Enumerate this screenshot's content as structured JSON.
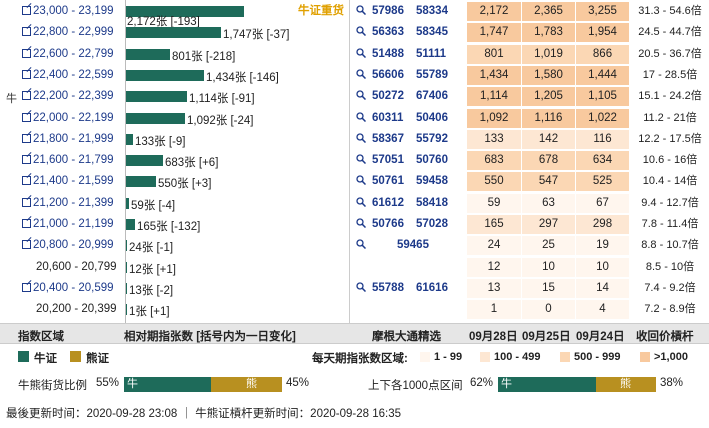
{
  "colors": {
    "bull": "#1e6b5a",
    "bear": "#b89020",
    "heat1": "#fde7d3",
    "heat2": "#fbd7b4",
    "heat3": "#f8c99e",
    "heat0": "#fff6ee"
  },
  "heavy_label": "牛证重货",
  "bull_mark": "牛",
  "rows": [
    {
      "range": "23,000 - 23,199",
      "link": true,
      "bar_value": 2172,
      "bar_text": "2,172张 [-193]",
      "label_below": true,
      "codes": [
        "57986",
        "58334"
      ],
      "v1": "2,172",
      "v2": "2,365",
      "v3": "3,255",
      "ratio": "31.3 - 54.6倍",
      "heat": 3
    },
    {
      "range": "22,800 - 22,999",
      "link": true,
      "bar_value": 1747,
      "bar_text": "1,747张 [-37]",
      "codes": [
        "56363",
        "58345"
      ],
      "v1": "1,747",
      "v2": "1,783",
      "v3": "1,954",
      "ratio": "24.5 - 44.7倍",
      "heat": 3
    },
    {
      "range": "22,600 - 22,799",
      "link": true,
      "bar_value": 801,
      "bar_text": "801张 [-218]",
      "codes": [
        "51488",
        "51111"
      ],
      "v1": "801",
      "v2": "1,019",
      "v3": "866",
      "ratio": "20.5 - 36.7倍",
      "heat": 2
    },
    {
      "range": "22,400 - 22,599",
      "link": true,
      "bar_value": 1434,
      "bar_text": "1,434张 [-146]",
      "codes": [
        "56606",
        "55789"
      ],
      "v1": "1,434",
      "v2": "1,580",
      "v3": "1,444",
      "ratio": "17 - 28.5倍",
      "heat": 3
    },
    {
      "range": "22,200 - 22,399",
      "link": true,
      "bull": true,
      "bar_value": 1114,
      "bar_text": "1,114张 [-91]",
      "codes": [
        "50272",
        "67406"
      ],
      "v1": "1,114",
      "v2": "1,205",
      "v3": "1,105",
      "ratio": "15.1 - 24.2倍",
      "heat": 3
    },
    {
      "range": "22,000 - 22,199",
      "link": true,
      "bar_value": 1092,
      "bar_text": "1,092张 [-24]",
      "codes": [
        "60311",
        "50406"
      ],
      "v1": "1,092",
      "v2": "1,116",
      "v3": "1,022",
      "ratio": "11.2 - 21倍",
      "heat": 3
    },
    {
      "range": "21,800 - 21,999",
      "link": true,
      "bar_value": 133,
      "bar_text": "133张 [-9]",
      "codes": [
        "58367",
        "55792"
      ],
      "v1": "133",
      "v2": "142",
      "v3": "116",
      "ratio": "12.2 - 17.5倍",
      "heat": 1
    },
    {
      "range": "21,600 - 21,799",
      "link": true,
      "bar_value": 683,
      "bar_text": "683张 [+6]",
      "codes": [
        "57051",
        "50760"
      ],
      "v1": "683",
      "v2": "678",
      "v3": "634",
      "ratio": "10.6 - 16倍",
      "heat": 2
    },
    {
      "range": "21,400 - 21,599",
      "link": true,
      "bar_value": 550,
      "bar_text": "550张 [+3]",
      "codes": [
        "50761",
        "59458"
      ],
      "v1": "550",
      "v2": "547",
      "v3": "525",
      "ratio": "10.4 - 14倍",
      "heat": 2
    },
    {
      "range": "21,200 - 21,399",
      "link": true,
      "bar_value": 59,
      "bar_text": "59张 [-4]",
      "codes": [
        "61612",
        "58418"
      ],
      "v1": "59",
      "v2": "63",
      "v3": "67",
      "ratio": "9.4 - 12.7倍",
      "heat": 0
    },
    {
      "range": "21,000 - 21,199",
      "link": true,
      "bar_value": 165,
      "bar_text": "165张 [-132]",
      "codes": [
        "50766",
        "57028"
      ],
      "v1": "165",
      "v2": "297",
      "v3": "298",
      "ratio": "7.8 - 11.4倍",
      "heat": 1
    },
    {
      "range": "20,800 - 20,999",
      "link": true,
      "bar_value": 24,
      "bar_text": "24张 [-1]",
      "codes": [
        "59465"
      ],
      "single": true,
      "v1": "24",
      "v2": "25",
      "v3": "19",
      "ratio": "8.8 - 10.7倍",
      "heat": 0
    },
    {
      "range": "20,600 - 20,799",
      "link": false,
      "bar_value": 12,
      "bar_text": "12张 [+1]",
      "codes": [],
      "v1": "12",
      "v2": "10",
      "v3": "10",
      "ratio": "8.5 - 10倍",
      "heat": 0
    },
    {
      "range": "20,400 - 20,599",
      "link": true,
      "bar_value": 13,
      "bar_text": "13张 [-2]",
      "codes": [
        "55788",
        "61616"
      ],
      "v1": "13",
      "v2": "15",
      "v3": "14",
      "ratio": "7.4 - 9.2倍",
      "heat": 0
    },
    {
      "range": "20,200 - 20,399",
      "link": false,
      "bar_value": 1,
      "bar_text": "1张 [+1]",
      "codes": [],
      "v1": "1",
      "v2": "0",
      "v3": "4",
      "ratio": "7.2 - 8.9倍",
      "heat": 0
    }
  ],
  "header": {
    "col_range": "指数区域",
    "col_count": "相对期指张数 [括号内为一日变化]",
    "col_codes": "摩根大通精选",
    "d1": "09月28日",
    "d2": "09月25日",
    "d3": "09月24日",
    "col_ratio": "收回价槓杆"
  },
  "legend": {
    "bull": "牛证",
    "bear": "熊证",
    "level_title": "每天期指张数区域:",
    "levels": [
      "1 - 99",
      "100 - 499",
      "500 - 999",
      ">1,000"
    ]
  },
  "ratio_a": {
    "label": "牛熊街货比例",
    "bull_pct": 55,
    "bull_text": "55%",
    "bull_tag": "牛",
    "bear_tag": "熊",
    "bear_text": "45%"
  },
  "ratio_b": {
    "label": "上下各1000点区间",
    "bull_pct": 62,
    "bull_text": "62%",
    "bull_tag": "牛",
    "bear_tag": "熊",
    "bear_text": "38%"
  },
  "footer": "最後更新时间：2020-09-28 23:08 ｜ 牛熊证槓杆更新时间：2020-09-28 16:35"
}
